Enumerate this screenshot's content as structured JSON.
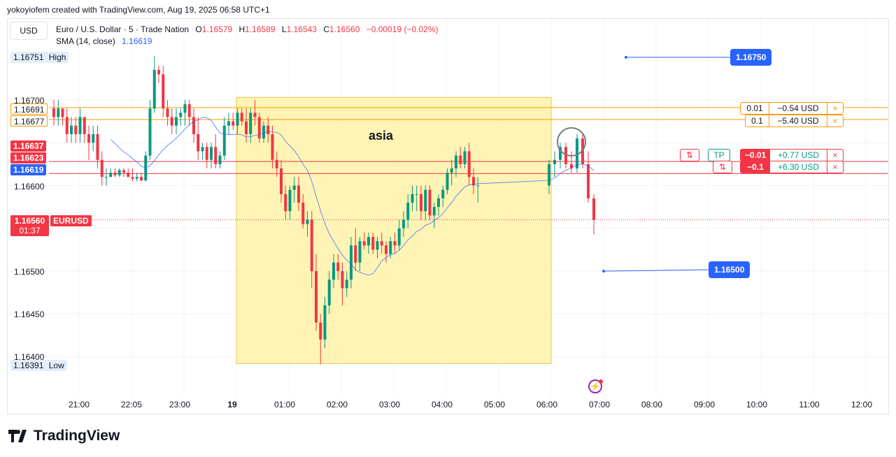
{
  "credit": "yokoyiofem created with TradingView.com, Aug 19, 2025 06:58 UTC+1",
  "currency_button": "USD",
  "legend": {
    "symbol": "Euro / U.S. Dollar · 5 · Trade Nation",
    "o_label": "O",
    "o": "1.16579",
    "h_label": "H",
    "h": "1.16589",
    "l_label": "L",
    "l": "1.16543",
    "c_label": "C",
    "c": "1.16560",
    "change": "−0.00019 (−0.02%)",
    "sma_label": "SMA (14, close)",
    "sma_value": "1.16619"
  },
  "price_labels": {
    "high_value": "1.16751",
    "high_text": "High",
    "low_value": "1.16391",
    "low_text": "Low",
    "p1": "1.16691",
    "p2": "1.16677",
    "p3": "1.16637",
    "p4": "1.16623",
    "sma": "1.16619",
    "last": "1.16560",
    "symbol": "EURUSD",
    "countdown": "01:37"
  },
  "y_ticks": [
    "1.16700",
    "1.16600",
    "1.16500",
    "1.16450",
    "1.16400"
  ],
  "x_ticks": [
    "21:00",
    "22:05",
    "23:00",
    "19",
    "01:00",
    "02:00",
    "03:00",
    "04:00",
    "05:00",
    "06:00",
    "07:00",
    "08:00",
    "09:00",
    "10:00",
    "11:00",
    "12:00"
  ],
  "annotations": {
    "session_label": "asia",
    "target_up": "1.16750",
    "target_down": "1.16500"
  },
  "orders": [
    {
      "qty": "0.01",
      "pnl": "−0.54 USD",
      "close": "×"
    },
    {
      "qty": "0.1",
      "pnl": "−5.40 USD",
      "close": "×"
    },
    {
      "tp": "TP",
      "qty": "−0.01",
      "pnl": "+0.77 USD",
      "close": "×",
      "reverse": "⇅"
    },
    {
      "qty": "−0.1",
      "pnl": "+6.30 USD",
      "close": "×",
      "reverse": "⇅"
    }
  ],
  "branding": "TradingView",
  "colors": {
    "up": "#089981",
    "down": "#f23645",
    "sma": "#2962ff",
    "session_box": "#fff2a8",
    "order_long": "#ff9800",
    "order_short": "#f23645"
  },
  "chart_data": {
    "type": "candlestick",
    "symbol": "EURUSD",
    "timeframe": "5",
    "ylim": [
      1.1637,
      1.1677
    ],
    "x_range": [
      "20:30",
      "12:15"
    ],
    "ohlc": [
      [
        "20:05",
        1.1669,
        1.167,
        1.1667,
        1.1668
      ],
      [
        "20:10",
        1.1668,
        1.167,
        1.1667,
        1.1669
      ],
      [
        "20:15",
        1.1669,
        1.1669,
        1.1667,
        1.1668
      ],
      [
        "20:20",
        1.1668,
        1.1669,
        1.1665,
        1.1666
      ],
      [
        "20:25",
        1.1666,
        1.1668,
        1.1665,
        1.1667
      ],
      [
        "20:30",
        1.1667,
        1.1668,
        1.1665,
        1.1666
      ],
      [
        "20:35",
        1.1666,
        1.1669,
        1.1665,
        1.1668
      ],
      [
        "20:40",
        1.1668,
        1.1668,
        1.1665,
        1.1666
      ],
      [
        "20:45",
        1.1666,
        1.1667,
        1.1663,
        1.1665
      ],
      [
        "20:50",
        1.1665,
        1.1667,
        1.1664,
        1.1666
      ],
      [
        "20:55",
        1.1666,
        1.1667,
        1.1662,
        1.1663
      ],
      [
        "21:00",
        1.1663,
        1.1664,
        1.166,
        1.1661
      ],
      [
        "21:05",
        1.1661,
        1.1662,
        1.166,
        1.1661
      ],
      [
        "21:10",
        1.1661,
        1.1662,
        1.1661,
        1.16615
      ],
      [
        "21:15",
        1.16615,
        1.1662,
        1.1661,
        1.16612
      ],
      [
        "21:20",
        1.16612,
        1.1662,
        1.1661,
        1.16618
      ],
      [
        "21:25",
        1.16618,
        1.1662,
        1.1661,
        1.16615
      ],
      [
        "21:30",
        1.16615,
        1.1662,
        1.1661,
        1.1661
      ],
      [
        "21:35",
        1.1661,
        1.1662,
        1.16605,
        1.16608
      ],
      [
        "21:40",
        1.16608,
        1.16615,
        1.16605,
        1.1661
      ],
      [
        "21:45",
        1.1661,
        1.16615,
        1.16605,
        1.16606
      ],
      [
        "21:50",
        1.16606,
        1.1664,
        1.16605,
        1.16635
      ],
      [
        "21:55",
        1.16635,
        1.167,
        1.1663,
        1.1669
      ],
      [
        "22:00",
        1.1669,
        1.16751,
        1.16685,
        1.16735
      ],
      [
        "22:05",
        1.16735,
        1.1674,
        1.1672,
        1.1673
      ],
      [
        "22:10",
        1.1673,
        1.1674,
        1.1668,
        1.1669
      ],
      [
        "22:15",
        1.1669,
        1.167,
        1.1667,
        1.1668
      ],
      [
        "22:20",
        1.1668,
        1.1669,
        1.1666,
        1.1667
      ],
      [
        "22:25",
        1.1667,
        1.1669,
        1.1666,
        1.1668
      ],
      [
        "22:30",
        1.1668,
        1.1669,
        1.1667,
        1.16685
      ],
      [
        "22:35",
        1.16685,
        1.167,
        1.1667,
        1.16695
      ],
      [
        "22:40",
        1.16695,
        1.167,
        1.1667,
        1.1668
      ],
      [
        "22:45",
        1.1668,
        1.1669,
        1.1665,
        1.1666
      ],
      [
        "22:50",
        1.1666,
        1.1668,
        1.1663,
        1.1664
      ],
      [
        "22:55",
        1.1664,
        1.1665,
        1.1663,
        1.16645
      ],
      [
        "23:00",
        1.16645,
        1.1665,
        1.1662,
        1.1663
      ],
      [
        "23:05",
        1.1663,
        1.1665,
        1.1662,
        1.16645
      ],
      [
        "23:10",
        1.16645,
        1.1666,
        1.1662,
        1.16625
      ],
      [
        "23:15",
        1.16625,
        1.1664,
        1.1662,
        1.16635
      ],
      [
        "23:20",
        1.16635,
        1.1668,
        1.1663,
        1.1667
      ],
      [
        "23:25",
        1.1667,
        1.16685,
        1.1666,
        1.16675
      ],
      [
        "23:30",
        1.16675,
        1.16685,
        1.16665,
        1.1667
      ],
      [
        "23:35",
        1.1667,
        1.1669,
        1.1666,
        1.16685
      ],
      [
        "23:40",
        1.16685,
        1.1669,
        1.1667,
        1.16675
      ],
      [
        "23:45",
        1.16675,
        1.1669,
        1.1665,
        1.1666
      ],
      [
        "23:50",
        1.1666,
        1.1669,
        1.1665,
        1.16685
      ],
      [
        "23:55",
        1.16685,
        1.167,
        1.1667,
        1.1668
      ],
      [
        "00:00",
        1.1668,
        1.16685,
        1.1665,
        1.16655
      ],
      [
        "00:05",
        1.16655,
        1.16675,
        1.1665,
        1.1667
      ],
      [
        "00:10",
        1.1667,
        1.1668,
        1.1665,
        1.1666
      ],
      [
        "00:15",
        1.1666,
        1.1667,
        1.1662,
        1.1663
      ],
      [
        "00:20",
        1.1663,
        1.1664,
        1.1661,
        1.1662
      ],
      [
        "00:25",
        1.1662,
        1.1663,
        1.1658,
        1.1659
      ],
      [
        "00:30",
        1.1659,
        1.166,
        1.1656,
        1.1657
      ],
      [
        "00:35",
        1.1657,
        1.166,
        1.1656,
        1.16595
      ],
      [
        "00:40",
        1.16595,
        1.1661,
        1.1658,
        1.166
      ],
      [
        "00:45",
        1.166,
        1.1661,
        1.1657,
        1.1658
      ],
      [
        "00:50",
        1.1658,
        1.1659,
        1.1655,
        1.16555
      ],
      [
        "00:55",
        1.16555,
        1.1657,
        1.1654,
        1.1656
      ],
      [
        "01:00",
        1.1656,
        1.1657,
        1.1648,
        1.165
      ],
      [
        "01:05",
        1.165,
        1.1652,
        1.1643,
        1.1644
      ],
      [
        "01:10",
        1.1644,
        1.1645,
        1.16391,
        1.1642
      ],
      [
        "01:15",
        1.1642,
        1.1647,
        1.1641,
        1.1646
      ],
      [
        "01:20",
        1.1646,
        1.165,
        1.1645,
        1.1649
      ],
      [
        "01:25",
        1.1649,
        1.1652,
        1.1648,
        1.1651
      ],
      [
        "01:30",
        1.1651,
        1.1652,
        1.1649,
        1.165
      ],
      [
        "01:35",
        1.165,
        1.1651,
        1.1646,
        1.1648
      ],
      [
        "01:40",
        1.1648,
        1.165,
        1.1647,
        1.1649
      ],
      [
        "01:45",
        1.1649,
        1.1654,
        1.1648,
        1.1653
      ],
      [
        "01:50",
        1.1653,
        1.1655,
        1.165,
        1.1651
      ],
      [
        "01:55",
        1.1651,
        1.1654,
        1.165,
        1.16535
      ],
      [
        "02:00",
        1.16535,
        1.16545,
        1.16525,
        1.1653
      ],
      [
        "02:05",
        1.1653,
        1.16545,
        1.1652,
        1.1654
      ],
      [
        "02:10",
        1.1654,
        1.16545,
        1.1652,
        1.16525
      ],
      [
        "02:15",
        1.16525,
        1.1654,
        1.16515,
        1.16535
      ],
      [
        "02:20",
        1.16535,
        1.16545,
        1.1652,
        1.1653
      ],
      [
        "02:25",
        1.1653,
        1.16535,
        1.1651,
        1.1652
      ],
      [
        "02:30",
        1.1652,
        1.1654,
        1.16515,
        1.16535
      ],
      [
        "02:35",
        1.16535,
        1.16545,
        1.1652,
        1.1653
      ],
      [
        "02:40",
        1.1653,
        1.1656,
        1.16525,
        1.1655
      ],
      [
        "02:45",
        1.1655,
        1.1657,
        1.1654,
        1.1656
      ],
      [
        "02:50",
        1.1656,
        1.1659,
        1.1655,
        1.1658
      ],
      [
        "02:55",
        1.1658,
        1.166,
        1.1657,
        1.1659
      ],
      [
        "03:00",
        1.1659,
        1.166,
        1.1657,
        1.1659
      ],
      [
        "03:05",
        1.1659,
        1.166,
        1.1656,
        1.1657
      ],
      [
        "03:10",
        1.1657,
        1.166,
        1.1656,
        1.16595
      ],
      [
        "03:15",
        1.16595,
        1.166,
        1.1656,
        1.16565
      ],
      [
        "03:20",
        1.16565,
        1.1658,
        1.1655,
        1.16575
      ],
      [
        "03:25",
        1.16575,
        1.1659,
        1.16565,
        1.16585
      ],
      [
        "03:30",
        1.16585,
        1.166,
        1.16575,
        1.16595
      ],
      [
        "03:35",
        1.16595,
        1.1662,
        1.1659,
        1.16615
      ],
      [
        "03:40",
        1.16615,
        1.1663,
        1.166,
        1.1662
      ],
      [
        "03:45",
        1.1662,
        1.1664,
        1.1661,
        1.16635
      ],
      [
        "03:50",
        1.16635,
        1.16645,
        1.1662,
        1.16625
      ],
      [
        "03:55",
        1.16625,
        1.16645,
        1.1662,
        1.1664
      ],
      [
        "04:00",
        1.1664,
        1.1665,
        1.166,
        1.1661
      ],
      [
        "04:05",
        1.1661,
        1.1662,
        1.1659,
        1.166
      ],
      [
        "04:10",
        1.166,
        1.1661,
        1.1658,
        1.166
      ]
    ],
    "sma": {
      "name": "SMA (14, close)",
      "period": 14,
      "last": 1.16619
    },
    "session_box": {
      "label": "asia",
      "x_from": "00:00",
      "x_to": "06:00",
      "y_from": 1.16392,
      "y_to": 1.16703
    },
    "horizontal_levels": [
      1.16691,
      1.16677,
      1.16637,
      1.16623
    ],
    "target_lines": [
      {
        "value": 1.1675
      },
      {
        "value": 1.165
      }
    ],
    "last_price": 1.1656
  }
}
